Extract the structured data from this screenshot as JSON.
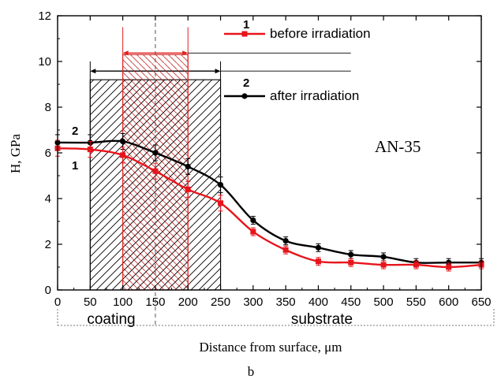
{
  "chart_data": {
    "type": "line",
    "panel_label": "b",
    "annotation": "AN-35",
    "xlabel": "Distance from surface, μm",
    "ylabel": "H, GPa",
    "xlim": [
      0,
      650
    ],
    "ylim": [
      0,
      12
    ],
    "xticks": [
      0,
      50,
      100,
      150,
      200,
      250,
      300,
      350,
      400,
      450,
      500,
      550,
      600,
      650
    ],
    "yticks": [
      0,
      2,
      4,
      6,
      8,
      10,
      12
    ],
    "grid": false,
    "legend_placement": "top-right",
    "regions": [
      {
        "label": "coating",
        "x_range": [
          0,
          250
        ]
      },
      {
        "label": "substrate",
        "x_range": [
          250,
          650
        ]
      }
    ],
    "hatched_zones": [
      {
        "marker": "2",
        "x_range": [
          50,
          250
        ],
        "y_top": 9.2,
        "color": "#000000"
      },
      {
        "marker": "1",
        "x_range": [
          100,
          200
        ],
        "y_top": 10.3,
        "color": "#e02020"
      }
    ],
    "center_line_x": 150,
    "series": [
      {
        "name": "before irradiation",
        "marker_label": "1",
        "color": "#e8141c",
        "marker": "square",
        "x": [
          0,
          50,
          100,
          150,
          200,
          250,
          300,
          350,
          400,
          450,
          500,
          550,
          600,
          650
        ],
        "y": [
          6.2,
          6.15,
          5.9,
          5.2,
          4.4,
          3.8,
          2.55,
          1.75,
          1.25,
          1.2,
          1.1,
          1.1,
          1.0,
          1.1
        ]
      },
      {
        "name": "after irradiation",
        "marker_label": "2",
        "color": "#000000",
        "marker": "circle",
        "x": [
          0,
          50,
          100,
          150,
          200,
          250,
          300,
          350,
          400,
          450,
          500,
          550,
          600,
          650
        ],
        "y": [
          6.45,
          6.45,
          6.5,
          6.0,
          5.4,
          4.6,
          3.05,
          2.15,
          1.85,
          1.55,
          1.45,
          1.2,
          1.2,
          1.2
        ]
      }
    ]
  }
}
